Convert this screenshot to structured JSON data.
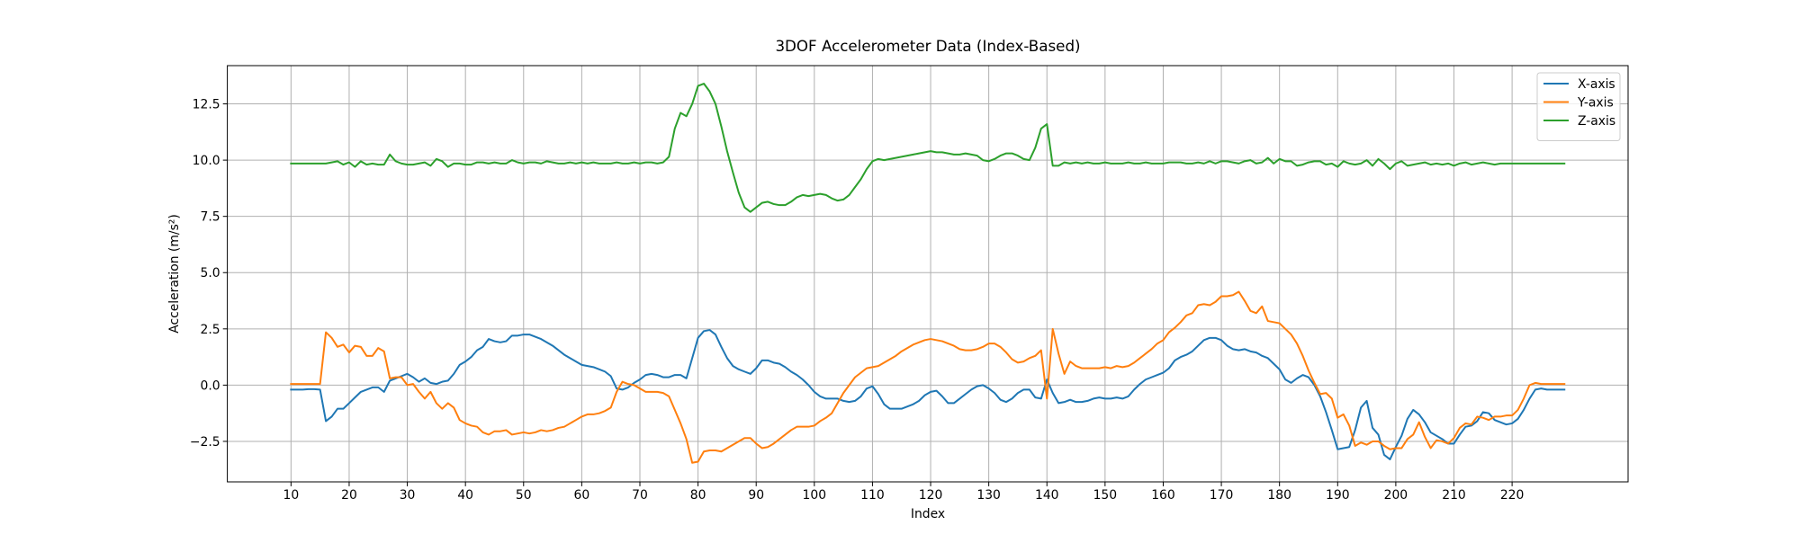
{
  "chart_data": {
    "type": "line",
    "title": "3DOF Accelerometer Data (Index-Based)",
    "x_label": "Index",
    "y_label": "Acceleration (m/s²)",
    "x": [
      10,
      11,
      12,
      13,
      14,
      15,
      16,
      17,
      18,
      19,
      20,
      21,
      22,
      23,
      24,
      25,
      26,
      27,
      28,
      29,
      30,
      31,
      32,
      33,
      34,
      35,
      36,
      37,
      38,
      39,
      40,
      41,
      42,
      43,
      44,
      45,
      46,
      47,
      48,
      49,
      50,
      51,
      52,
      53,
      54,
      55,
      56,
      57,
      58,
      59,
      60,
      61,
      62,
      63,
      64,
      65,
      66,
      67,
      68,
      69,
      70,
      71,
      72,
      73,
      74,
      75,
      76,
      77,
      78,
      79,
      80,
      81,
      82,
      83,
      84,
      85,
      86,
      87,
      88,
      89,
      90,
      91,
      92,
      93,
      94,
      95,
      96,
      97,
      98,
      99,
      100,
      101,
      102,
      103,
      104,
      105,
      106,
      107,
      108,
      109,
      110,
      111,
      112,
      113,
      114,
      115,
      116,
      117,
      118,
      119,
      120,
      121,
      122,
      123,
      124,
      125,
      126,
      127,
      128,
      129,
      130,
      131,
      132,
      133,
      134,
      135,
      136,
      137,
      138,
      139,
      140,
      141,
      142,
      143,
      144,
      145,
      146,
      147,
      148,
      149,
      150,
      151,
      152,
      153,
      154,
      155,
      156,
      157,
      158,
      159,
      160,
      161,
      162,
      163,
      164,
      165,
      166,
      167,
      168,
      169,
      170,
      171,
      172,
      173,
      174,
      175,
      176,
      177,
      178,
      179,
      180,
      181,
      182,
      183,
      184,
      185,
      186,
      187,
      188,
      189,
      190,
      191,
      192,
      193,
      194,
      195,
      196,
      197,
      198,
      199,
      200,
      201,
      202,
      203,
      204,
      205,
      206,
      207,
      208,
      209,
      210,
      211,
      212,
      213,
      214,
      215,
      216,
      217,
      218,
      219,
      220,
      221,
      222,
      223,
      224,
      225,
      226,
      227,
      228,
      229
    ],
    "series": [
      {
        "name": "X-axis",
        "color": "#1f77b4",
        "values": [
          -0.2,
          -0.2,
          -0.2,
          -0.18,
          -0.18,
          -0.2,
          -1.6,
          -1.4,
          -1.05,
          -1.05,
          -0.8,
          -0.55,
          -0.3,
          -0.2,
          -0.1,
          -0.1,
          -0.3,
          0.2,
          0.3,
          0.4,
          0.5,
          0.35,
          0.15,
          0.3,
          0.1,
          0.05,
          0.15,
          0.2,
          0.5,
          0.9,
          1.05,
          1.25,
          1.55,
          1.7,
          2.05,
          1.95,
          1.9,
          1.95,
          2.2,
          2.2,
          2.25,
          2.25,
          2.15,
          2.05,
          1.9,
          1.75,
          1.55,
          1.35,
          1.2,
          1.05,
          0.9,
          0.85,
          0.8,
          0.7,
          0.6,
          0.4,
          -0.15,
          -0.2,
          -0.1,
          0.1,
          0.25,
          0.45,
          0.5,
          0.45,
          0.35,
          0.35,
          0.45,
          0.45,
          0.3,
          1.2,
          2.1,
          2.4,
          2.45,
          2.25,
          1.7,
          1.2,
          0.85,
          0.7,
          0.6,
          0.5,
          0.75,
          1.1,
          1.1,
          1.0,
          0.95,
          0.8,
          0.6,
          0.45,
          0.25,
          0.0,
          -0.3,
          -0.5,
          -0.6,
          -0.6,
          -0.6,
          -0.7,
          -0.75,
          -0.7,
          -0.5,
          -0.15,
          -0.05,
          -0.4,
          -0.85,
          -1.05,
          -1.05,
          -1.05,
          -0.95,
          -0.85,
          -0.7,
          -0.45,
          -0.3,
          -0.25,
          -0.5,
          -0.8,
          -0.8,
          -0.6,
          -0.4,
          -0.2,
          -0.05,
          0.0,
          -0.15,
          -0.35,
          -0.65,
          -0.75,
          -0.6,
          -0.35,
          -0.2,
          -0.2,
          -0.55,
          -0.6,
          0.25,
          -0.35,
          -0.8,
          -0.75,
          -0.65,
          -0.75,
          -0.75,
          -0.7,
          -0.6,
          -0.55,
          -0.6,
          -0.6,
          -0.55,
          -0.6,
          -0.5,
          -0.2,
          0.05,
          0.25,
          0.35,
          0.45,
          0.55,
          0.75,
          1.1,
          1.25,
          1.35,
          1.5,
          1.75,
          2.0,
          2.1,
          2.1,
          2.0,
          1.75,
          1.6,
          1.55,
          1.6,
          1.5,
          1.45,
          1.3,
          1.2,
          0.95,
          0.7,
          0.25,
          0.1,
          0.3,
          0.45,
          0.35,
          0.0,
          -0.5,
          -1.2,
          -2.0,
          -2.85,
          -2.8,
          -2.75,
          -2.0,
          -1.0,
          -0.7,
          -1.9,
          -2.2,
          -3.1,
          -3.3,
          -2.75,
          -2.25,
          -1.5,
          -1.1,
          -1.3,
          -1.65,
          -2.1,
          -2.25,
          -2.4,
          -2.6,
          -2.6,
          -2.2,
          -1.85,
          -1.8,
          -1.6,
          -1.2,
          -1.25,
          -1.55,
          -1.65,
          -1.75,
          -1.7,
          -1.5,
          -1.1,
          -0.6,
          -0.2,
          -0.15,
          -0.2,
          -0.2,
          -0.2,
          -0.2
        ]
      },
      {
        "name": "Y-axis",
        "color": "#ff7f0e",
        "values": [
          0.05,
          0.05,
          0.05,
          0.05,
          0.05,
          0.05,
          2.35,
          2.1,
          1.7,
          1.8,
          1.45,
          1.75,
          1.7,
          1.3,
          1.3,
          1.65,
          1.5,
          0.3,
          0.35,
          0.35,
          0.0,
          0.05,
          -0.3,
          -0.6,
          -0.3,
          -0.8,
          -1.05,
          -0.8,
          -1.0,
          -1.55,
          -1.7,
          -1.8,
          -1.85,
          -2.1,
          -2.2,
          -2.05,
          -2.05,
          -2.0,
          -2.2,
          -2.15,
          -2.1,
          -2.15,
          -2.1,
          -2.0,
          -2.05,
          -2.0,
          -1.9,
          -1.85,
          -1.7,
          -1.55,
          -1.4,
          -1.3,
          -1.3,
          -1.25,
          -1.15,
          -1.0,
          -0.3,
          0.15,
          0.05,
          0.0,
          -0.15,
          -0.3,
          -0.3,
          -0.3,
          -0.35,
          -0.5,
          -1.1,
          -1.7,
          -2.4,
          -3.45,
          -3.4,
          -2.95,
          -2.9,
          -2.9,
          -2.95,
          -2.8,
          -2.65,
          -2.5,
          -2.35,
          -2.35,
          -2.6,
          -2.8,
          -2.75,
          -2.6,
          -2.4,
          -2.2,
          -2.0,
          -1.85,
          -1.85,
          -1.85,
          -1.8,
          -1.6,
          -1.45,
          -1.25,
          -0.8,
          -0.35,
          0.0,
          0.35,
          0.55,
          0.75,
          0.8,
          0.85,
          1.0,
          1.15,
          1.3,
          1.5,
          1.65,
          1.8,
          1.9,
          2.0,
          2.05,
          2.0,
          1.95,
          1.85,
          1.75,
          1.6,
          1.55,
          1.55,
          1.6,
          1.7,
          1.85,
          1.85,
          1.7,
          1.45,
          1.15,
          1.0,
          1.05,
          1.2,
          1.3,
          1.55,
          -0.6,
          2.5,
          1.4,
          0.5,
          1.05,
          0.85,
          0.75,
          0.75,
          0.75,
          0.75,
          0.8,
          0.75,
          0.85,
          0.8,
          0.85,
          1.0,
          1.2,
          1.4,
          1.6,
          1.85,
          2.0,
          2.35,
          2.55,
          2.8,
          3.1,
          3.2,
          3.55,
          3.6,
          3.55,
          3.7,
          3.95,
          3.95,
          4.0,
          4.15,
          3.75,
          3.3,
          3.2,
          3.5,
          2.85,
          2.8,
          2.75,
          2.5,
          2.25,
          1.85,
          1.3,
          0.65,
          0.1,
          -0.4,
          -0.35,
          -0.6,
          -1.45,
          -1.3,
          -1.8,
          -2.7,
          -2.55,
          -2.65,
          -2.5,
          -2.5,
          -2.7,
          -2.85,
          -2.8,
          -2.8,
          -2.4,
          -2.2,
          -1.65,
          -2.3,
          -2.8,
          -2.45,
          -2.5,
          -2.6,
          -2.35,
          -1.9,
          -1.7,
          -1.75,
          -1.4,
          -1.45,
          -1.55,
          -1.4,
          -1.4,
          -1.35,
          -1.35,
          -1.1,
          -0.6,
          0.0,
          0.1,
          0.05,
          0.05,
          0.05,
          0.05,
          0.05
        ]
      },
      {
        "name": "Z-axis",
        "color": "#2ca02c",
        "values": [
          9.85,
          9.85,
          9.85,
          9.85,
          9.85,
          9.85,
          9.85,
          9.9,
          9.95,
          9.8,
          9.9,
          9.7,
          9.95,
          9.8,
          9.85,
          9.8,
          9.8,
          10.25,
          9.95,
          9.85,
          9.8,
          9.8,
          9.85,
          9.9,
          9.75,
          10.05,
          9.95,
          9.7,
          9.85,
          9.85,
          9.8,
          9.8,
          9.9,
          9.9,
          9.85,
          9.9,
          9.85,
          9.85,
          10.0,
          9.9,
          9.85,
          9.9,
          9.9,
          9.85,
          9.95,
          9.9,
          9.85,
          9.85,
          9.9,
          9.85,
          9.9,
          9.85,
          9.9,
          9.85,
          9.85,
          9.85,
          9.9,
          9.85,
          9.85,
          9.9,
          9.85,
          9.9,
          9.9,
          9.85,
          9.9,
          10.15,
          11.4,
          12.1,
          11.95,
          12.5,
          13.3,
          13.4,
          13.05,
          12.5,
          11.5,
          10.4,
          9.45,
          8.55,
          7.9,
          7.7,
          7.9,
          8.1,
          8.15,
          8.05,
          8.0,
          8.0,
          8.15,
          8.35,
          8.45,
          8.4,
          8.45,
          8.5,
          8.45,
          8.3,
          8.2,
          8.25,
          8.45,
          8.8,
          9.15,
          9.6,
          9.95,
          10.05,
          10.0,
          10.05,
          10.1,
          10.15,
          10.2,
          10.25,
          10.3,
          10.35,
          10.4,
          10.35,
          10.35,
          10.3,
          10.25,
          10.25,
          10.3,
          10.25,
          10.2,
          10.0,
          9.95,
          10.05,
          10.2,
          10.3,
          10.3,
          10.2,
          10.05,
          10.0,
          10.55,
          11.4,
          11.6,
          9.75,
          9.75,
          9.9,
          9.85,
          9.9,
          9.85,
          9.9,
          9.85,
          9.85,
          9.9,
          9.85,
          9.85,
          9.85,
          9.9,
          9.85,
          9.85,
          9.9,
          9.85,
          9.85,
          9.85,
          9.9,
          9.9,
          9.9,
          9.85,
          9.85,
          9.9,
          9.85,
          9.95,
          9.85,
          9.95,
          9.95,
          9.9,
          9.85,
          9.95,
          10.0,
          9.85,
          9.9,
          10.1,
          9.85,
          10.05,
          9.95,
          9.95,
          9.75,
          9.8,
          9.9,
          9.95,
          9.95,
          9.8,
          9.85,
          9.7,
          9.95,
          9.85,
          9.8,
          9.85,
          10.0,
          9.75,
          10.05,
          9.85,
          9.6,
          9.85,
          9.95,
          9.75,
          9.8,
          9.85,
          9.9,
          9.8,
          9.85,
          9.8,
          9.85,
          9.75,
          9.85,
          9.9,
          9.8,
          9.85,
          9.9,
          9.85,
          9.8,
          9.85,
          9.85,
          9.85,
          9.85,
          9.85,
          9.85,
          9.85,
          9.85,
          9.85,
          9.85,
          9.85,
          9.85
        ]
      }
    ],
    "xlim": [
      -0.95,
      239.95
    ],
    "ylim": [
      -4.3,
      14.2
    ],
    "xticks": [
      10,
      20,
      30,
      40,
      50,
      60,
      70,
      80,
      90,
      100,
      110,
      120,
      130,
      140,
      150,
      160,
      170,
      180,
      190,
      200,
      210,
      220
    ],
    "yticks": [
      {
        "value": -2.5,
        "label": "−2.5"
      },
      {
        "value": 0,
        "label": "0.0"
      },
      2.5,
      {
        "value": 5,
        "label": "5.0"
      },
      7.5,
      {
        "value": 10,
        "label": "10.0"
      },
      12.5
    ],
    "grid": true,
    "legend": "upper right"
  }
}
